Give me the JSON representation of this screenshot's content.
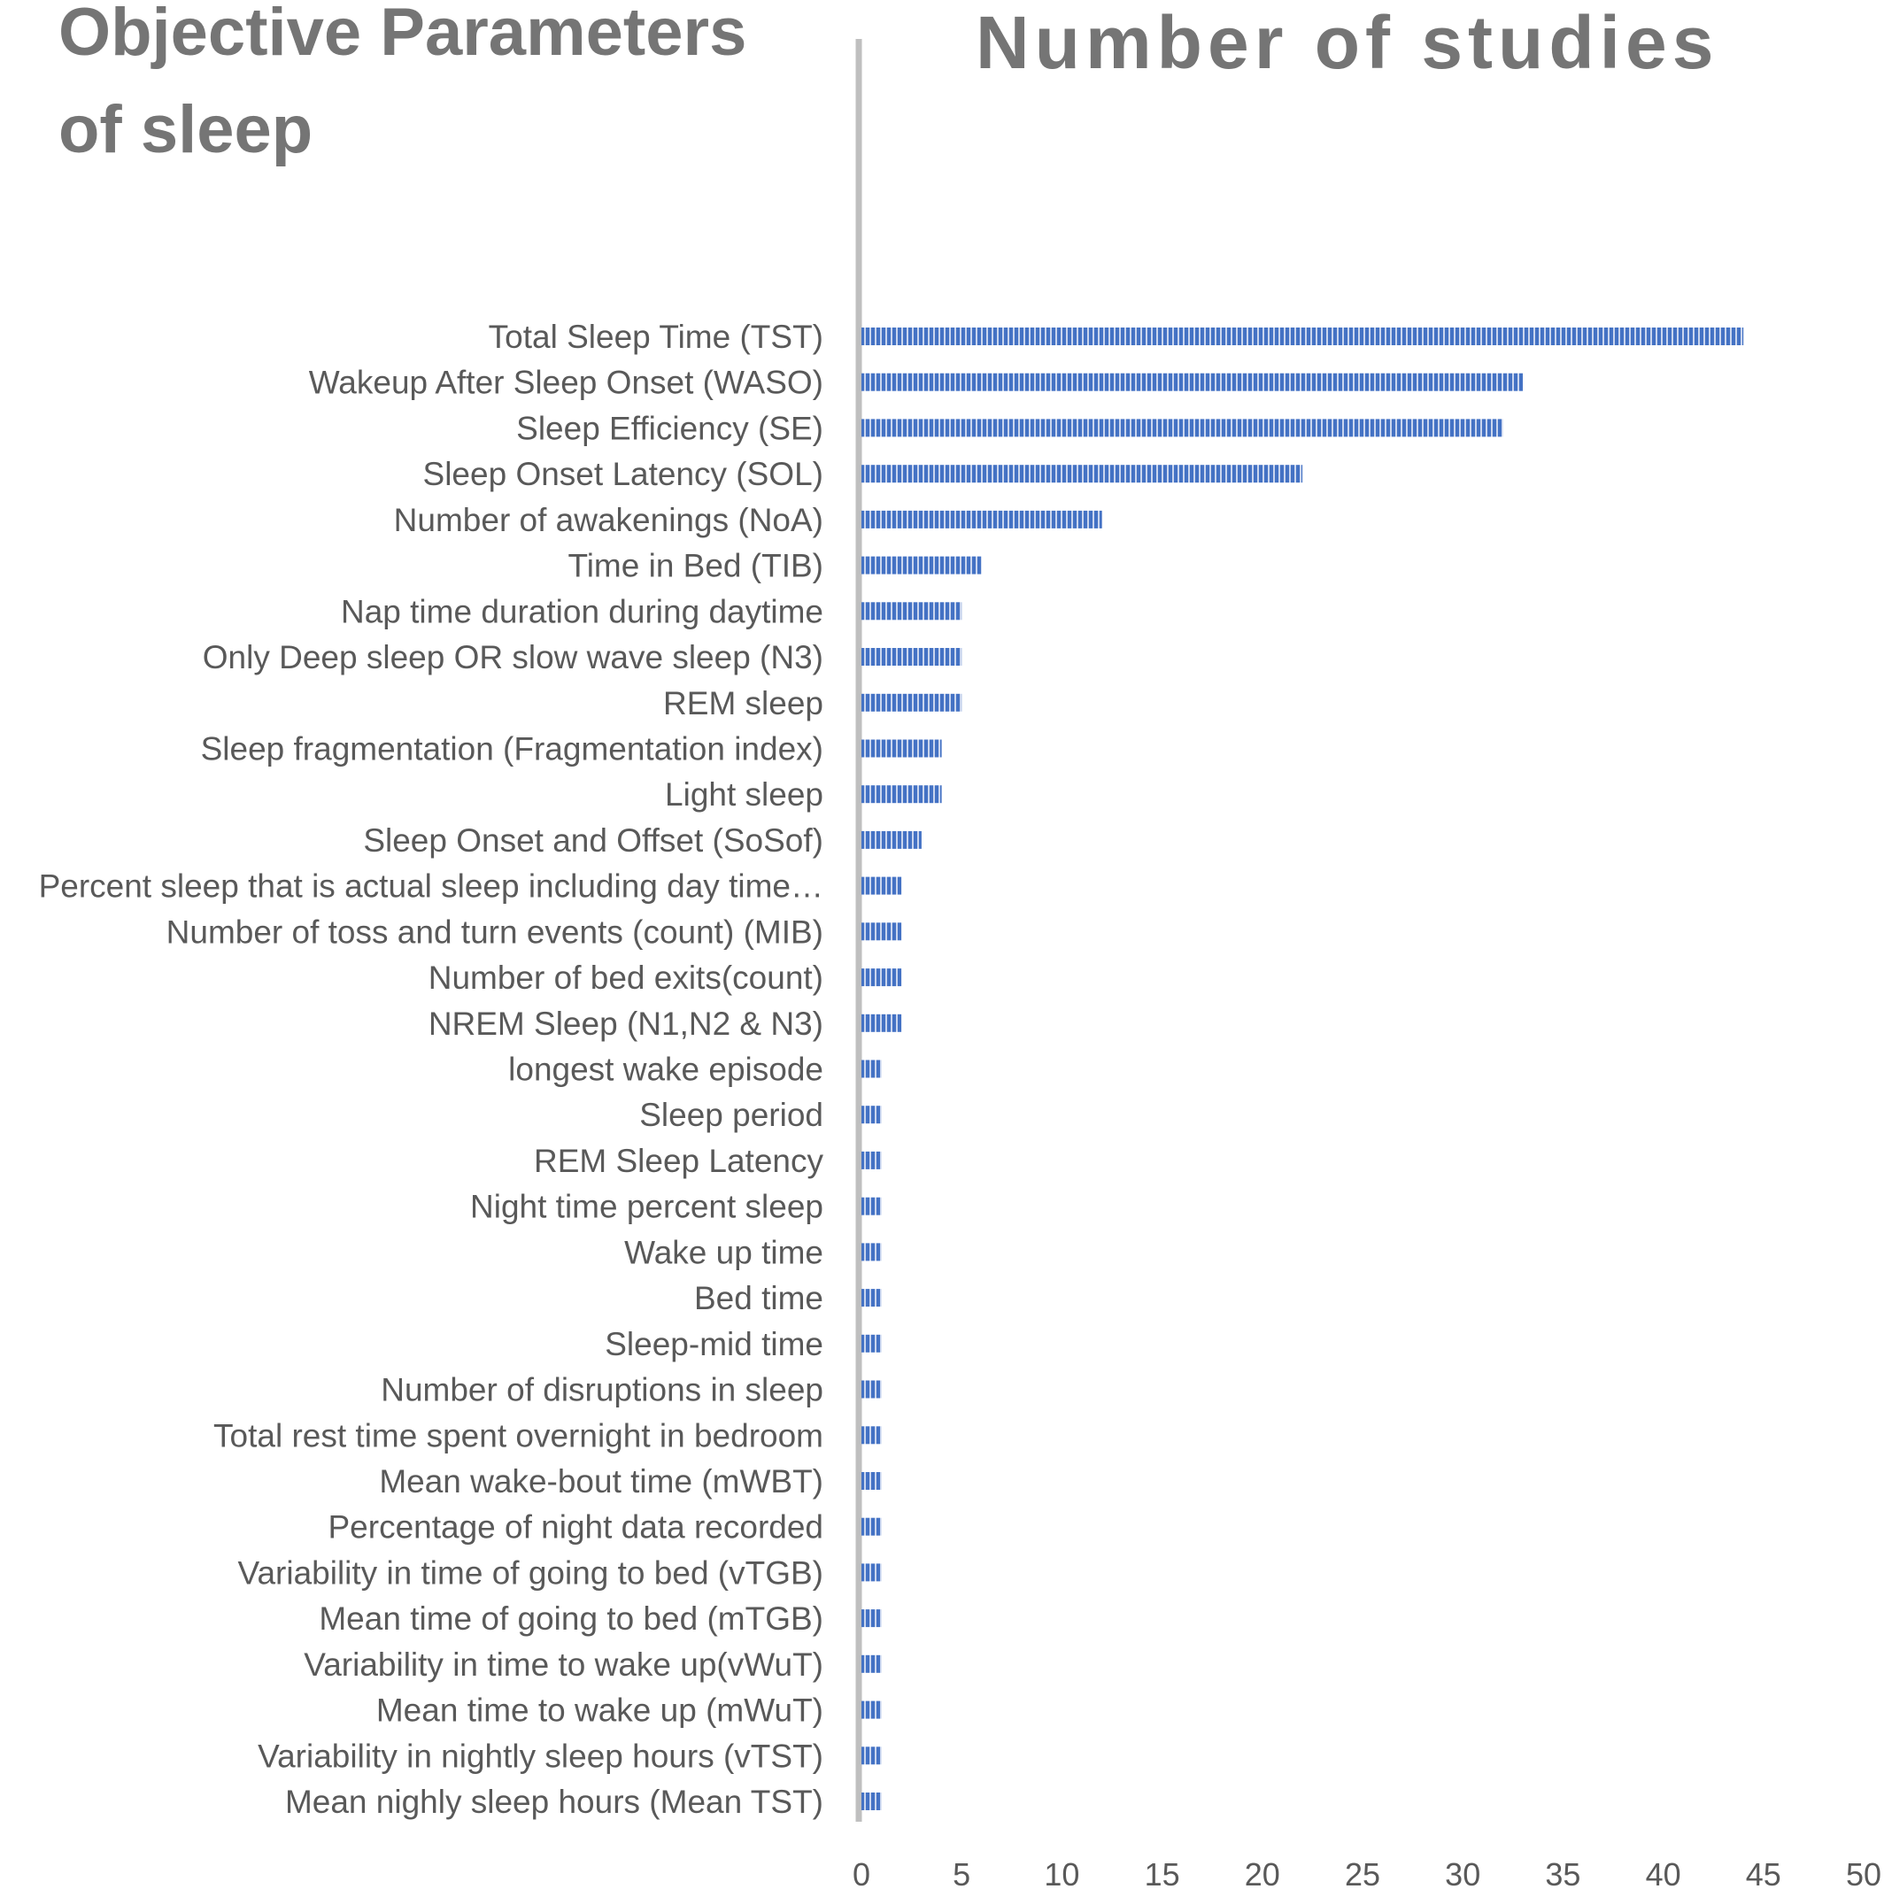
{
  "colors": {
    "bar": "#4472C4",
    "axis": "#BFBFBF",
    "text": "#595959",
    "title": "#757575"
  },
  "chart_data": {
    "type": "bar",
    "orientation": "horizontal",
    "title_left_line1": "Objective Parameters",
    "title_left_line2": "of sleep",
    "title_right": "Number of studies",
    "xlim": [
      0,
      50
    ],
    "xticks": [
      "0",
      "5",
      "10",
      "15",
      "20",
      "25",
      "30",
      "35",
      "40",
      "45",
      "50"
    ],
    "grid": false,
    "legend": "none",
    "categories": [
      "Total Sleep Time (TST)",
      "Wakeup After Sleep Onset (WASO)",
      "Sleep Efficiency (SE)",
      "Sleep Onset Latency (SOL)",
      "Number of awakenings (NoA)",
      "Time in Bed (TIB)",
      "Nap time duration during daytime",
      "Only Deep sleep OR slow wave sleep (N3)",
      "REM sleep",
      "Sleep fragmentation (Fragmentation index)",
      "Light sleep",
      "Sleep Onset and Offset (SoSof)",
      "Percent sleep that is actual sleep including day time…",
      "Number of toss and turn events (count) (MIB)",
      "Number of bed exits(count)",
      "NREM Sleep (N1,N2 & N3)",
      "longest wake episode",
      "Sleep period",
      "REM Sleep Latency",
      "Night time percent sleep",
      "Wake up time",
      "Bed time",
      "Sleep-mid time",
      "Number of disruptions in sleep",
      "Total rest time spent overnight in bedroom",
      "Mean wake-bout time (mWBT)",
      "Percentage of night data recorded",
      "Variability in time of going to bed (vTGB)",
      "Mean time of going to bed (mTGB)",
      "Variability in time to wake up(vWuT)",
      "Mean time to wake up (mWuT)",
      "Variability in nightly sleep hours (vTST)",
      "Mean nighly sleep hours (Mean TST)"
    ],
    "values": [
      44,
      33,
      32,
      22,
      12,
      6,
      5,
      5,
      5,
      4,
      4,
      3,
      2,
      2,
      2,
      2,
      1,
      1,
      1,
      1,
      1,
      1,
      1,
      1,
      1,
      1,
      1,
      1,
      1,
      1,
      1,
      1,
      1
    ]
  }
}
